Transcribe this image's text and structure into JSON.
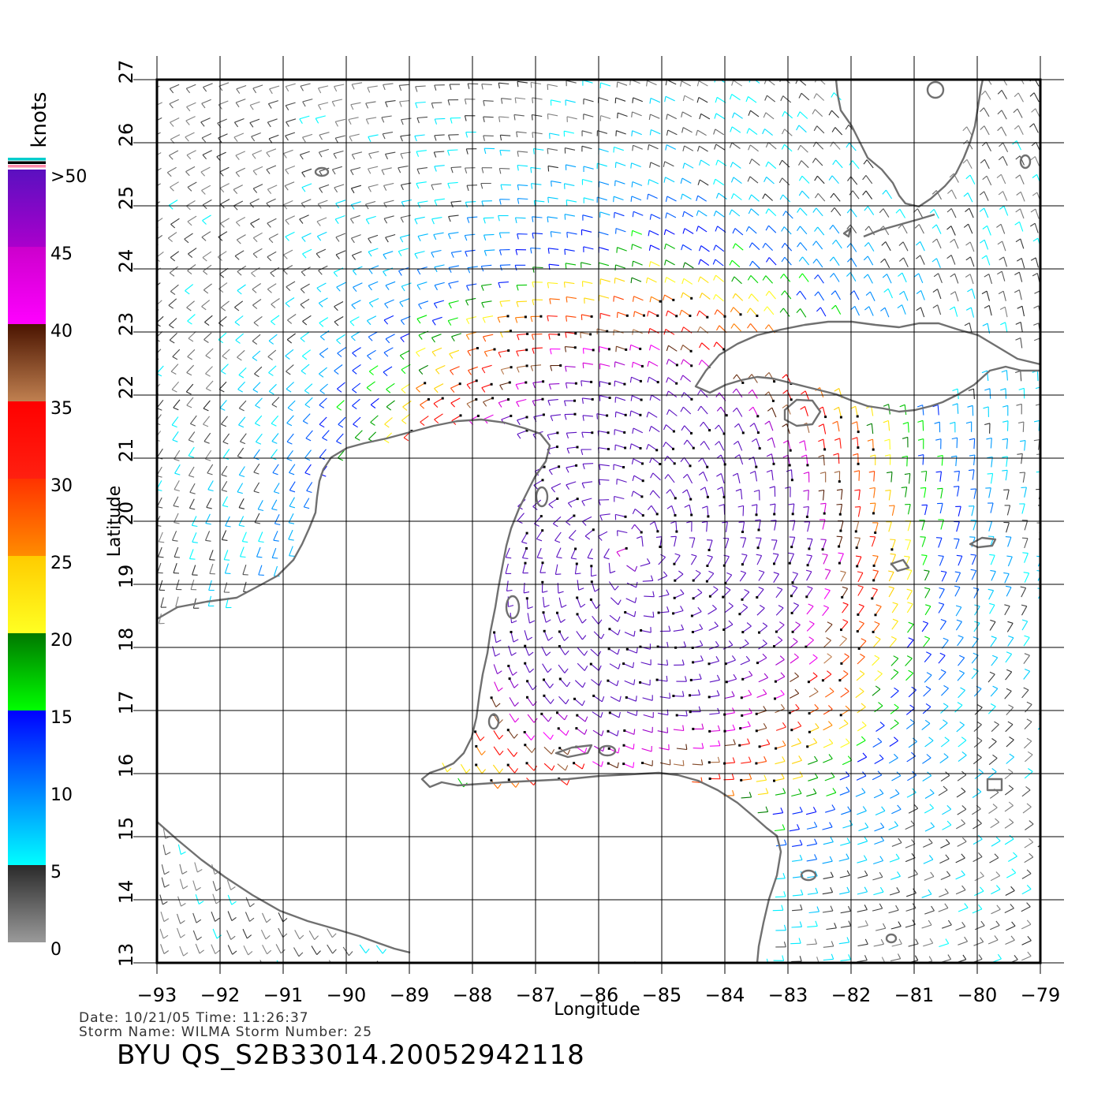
{
  "map": {
    "xlabel": "Longitude",
    "ylabel": "Latitude",
    "lon_range": [
      -93,
      -79
    ],
    "lat_range": [
      13,
      27
    ],
    "x_ticks": [
      "-93",
      "-92",
      "-91",
      "-90",
      "-89",
      "-88",
      "-87",
      "-86",
      "-85",
      "-84",
      "-83",
      "-82",
      "-81",
      "-80",
      "-79"
    ],
    "y_ticks": [
      "13",
      "14",
      "15",
      "16",
      "17",
      "18",
      "19",
      "20",
      "21",
      "22",
      "23",
      "24",
      "25",
      "26",
      "27"
    ],
    "grid": true,
    "storm_center": {
      "lon": -85.5,
      "lat": 19.5
    }
  },
  "colorbar": {
    "unit": "knots",
    "labels": [
      ">50",
      "45",
      "40",
      "35",
      "30",
      "25",
      "20",
      "15",
      "10",
      "5",
      "0"
    ],
    "segments": [
      {
        "range": [
          0,
          5
        ],
        "top": "#2a2a2a",
        "bottom": "#9a9a9a"
      },
      {
        "range": [
          5,
          15
        ],
        "top": "#0000ff",
        "bottom": "#00ffff"
      },
      {
        "range": [
          15,
          20
        ],
        "top": "#007800",
        "bottom": "#00ff00"
      },
      {
        "range": [
          20,
          25
        ],
        "top": "#ffcc00",
        "bottom": "#ffff22"
      },
      {
        "range": [
          25,
          30
        ],
        "top": "#ff3300",
        "bottom": "#ff8c00"
      },
      {
        "range": [
          30,
          35
        ],
        "top": "#ff0000",
        "bottom": "#ff2010"
      },
      {
        "range": [
          35,
          40
        ],
        "top": "#4a1400",
        "bottom": "#c08050"
      },
      {
        "range": [
          40,
          45
        ],
        "top": "#cc00cc",
        "bottom": "#ff00ff"
      },
      {
        "range": [
          45,
          50
        ],
        "top": "#5a10c0",
        "bottom": "#aa00cc"
      }
    ],
    "top_stripes": [
      "#00cccc",
      "#000000",
      "#ff88aa"
    ]
  },
  "footer": {
    "date_line": "Date: 10/21/05   Time: 11:26:37",
    "storm_line": "Storm Name: WILMA   Storm Number: 25",
    "product_id": "BYU QS_S2B33014.20052942118"
  }
}
